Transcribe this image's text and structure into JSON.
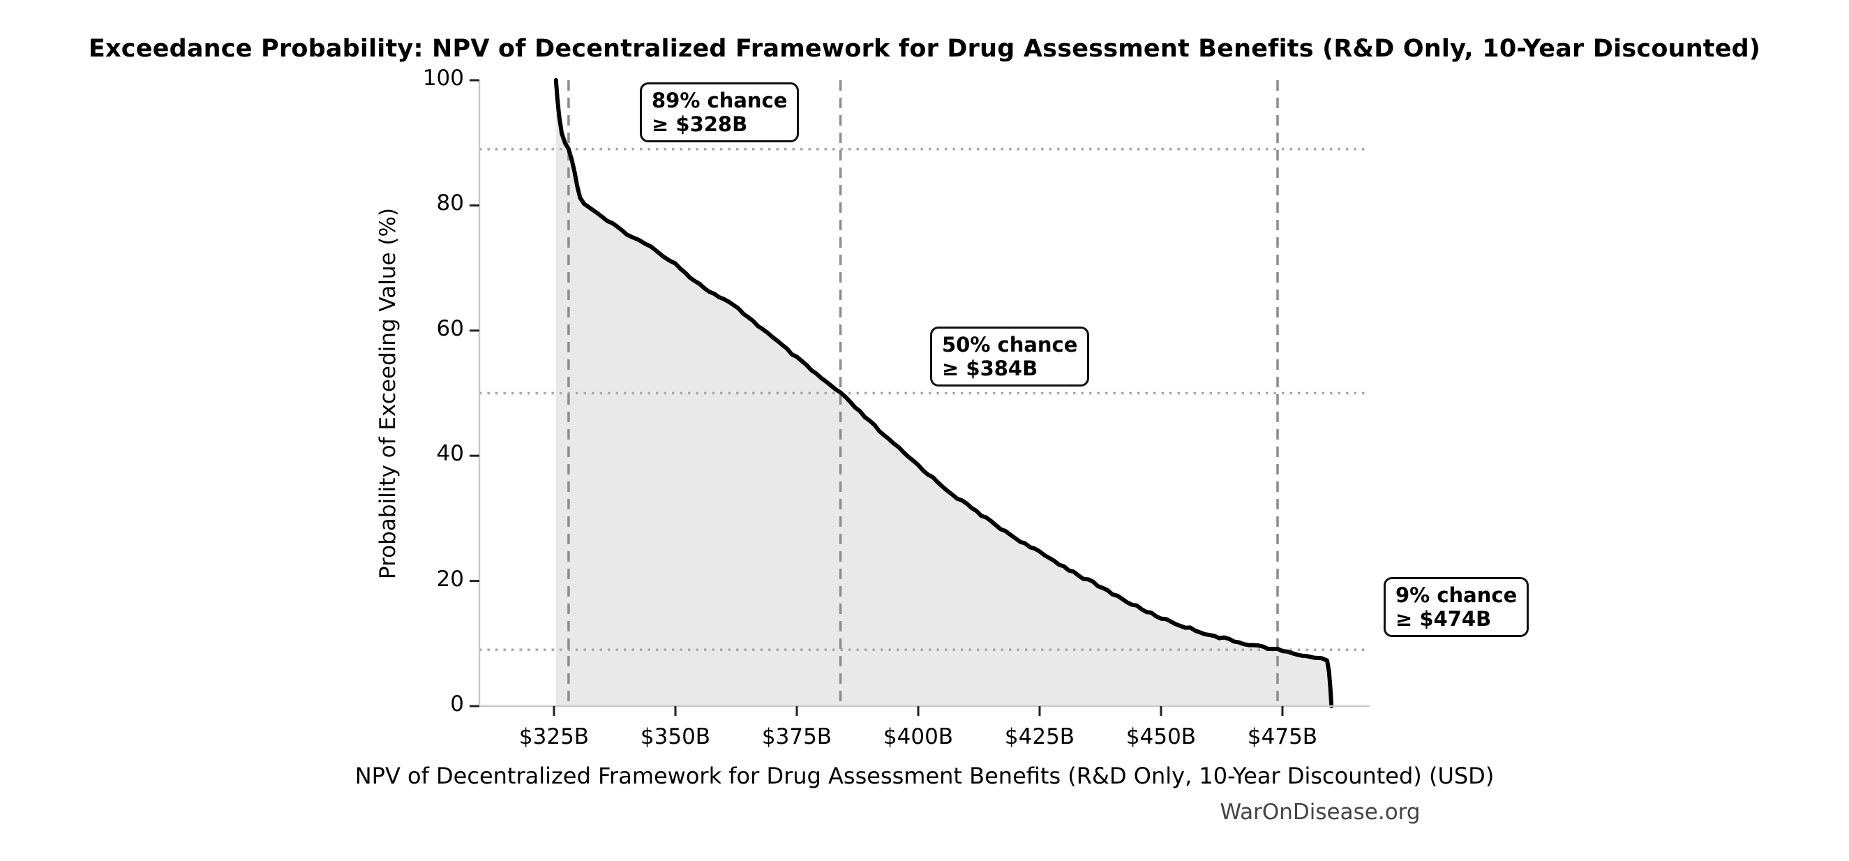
{
  "figure": {
    "title": "Exceedance Probability: NPV of Decentralized Framework for Drug Assessment Benefits (R&D Only, 10-Year Discounted)",
    "watermark": "WarOnDisease.org"
  },
  "chart_data": {
    "type": "line",
    "title": "Exceedance Probability: NPV of Decentralized Framework for Drug Assessment Benefits (R&D Only, 10-Year Discounted)",
    "xlabel": "NPV of Decentralized Framework for Drug Assessment Benefits (R&D Only, 10-Year Discounted) (USD)",
    "ylabel": "Probability of Exceeding Value (%)",
    "ylim": [
      0,
      100
    ],
    "x_tick_values": [
      325,
      350,
      375,
      400,
      425,
      450,
      475
    ],
    "x_tick_labels": [
      "$325B",
      "$350B",
      "$375B",
      "$400B",
      "$425B",
      "$450B",
      "$475B"
    ],
    "y_tick_values": [
      0,
      20,
      40,
      60,
      80,
      100
    ],
    "y_tick_labels": [
      "0",
      "20",
      "40",
      "60",
      "80",
      "100"
    ],
    "grid": "dotted horizontal reference lines at 89%, 50%, 9%; dashed vertical reference lines at $328B, $384B, $474B",
    "legend": "none",
    "reference_lines": {
      "vertical_values_b_usd": [
        328,
        384,
        474
      ],
      "horizontal_percents": [
        89,
        50,
        9
      ]
    },
    "annotations": [
      {
        "line1": "89% chance",
        "line2": "≥ $328B",
        "percent": 89,
        "value_b_usd": 328
      },
      {
        "line1": "50% chance",
        "line2": "≥ $384B",
        "percent": 50,
        "value_b_usd": 384
      },
      {
        "line1": "9% chance",
        "line2": "≥ $474B",
        "percent": 9,
        "value_b_usd": 474
      }
    ],
    "series": [
      {
        "name": "exceedance_curve",
        "points": [
          [
            325.4,
            100
          ],
          [
            325.7,
            97
          ],
          [
            326.1,
            94
          ],
          [
            326.6,
            91.5
          ],
          [
            327.3,
            90
          ],
          [
            328,
            89
          ],
          [
            328.6,
            87.5
          ],
          [
            329.2,
            85.5
          ],
          [
            329.8,
            83
          ],
          [
            330.4,
            81.2
          ],
          [
            331.2,
            80.3
          ],
          [
            332.5,
            79.5
          ],
          [
            334,
            78.6
          ],
          [
            336,
            77.5
          ],
          [
            338,
            76.5
          ],
          [
            340,
            75.5
          ],
          [
            342.5,
            74.4
          ],
          [
            345,
            73.3
          ],
          [
            347.5,
            72.0
          ],
          [
            350,
            70.7
          ],
          [
            352,
            69.3
          ],
          [
            354,
            67.9
          ],
          [
            356,
            66.8
          ],
          [
            358,
            65.8
          ],
          [
            360,
            64.9
          ],
          [
            362,
            64.0
          ],
          [
            364,
            62.8
          ],
          [
            366,
            61.5
          ],
          [
            368,
            60.2
          ],
          [
            370,
            58.9
          ],
          [
            372,
            57.6
          ],
          [
            374,
            56.3
          ],
          [
            376,
            55.0
          ],
          [
            378,
            53.7
          ],
          [
            380,
            52.4
          ],
          [
            382,
            51.2
          ],
          [
            384,
            50.0
          ],
          [
            386,
            48.5
          ],
          [
            388,
            47.0
          ],
          [
            390,
            45.5
          ],
          [
            392,
            44.0
          ],
          [
            394,
            42.5
          ],
          [
            396,
            41.2
          ],
          [
            398,
            39.8
          ],
          [
            400,
            38.5
          ],
          [
            402,
            37.1
          ],
          [
            404,
            35.8
          ],
          [
            406,
            34.5
          ],
          [
            408,
            33.3
          ],
          [
            410,
            32.2
          ],
          [
            412,
            31.1
          ],
          [
            414,
            30.0
          ],
          [
            416,
            28.9
          ],
          [
            418,
            27.9
          ],
          [
            420,
            26.9
          ],
          [
            422,
            25.9
          ],
          [
            424,
            25.0
          ],
          [
            426,
            24.1
          ],
          [
            428,
            23.2
          ],
          [
            430,
            22.3
          ],
          [
            432,
            21.4
          ],
          [
            434,
            20.5
          ],
          [
            436,
            19.7
          ],
          [
            438,
            18.8
          ],
          [
            440,
            18.0
          ],
          [
            442,
            17.1
          ],
          [
            444,
            16.3
          ],
          [
            446,
            15.5
          ],
          [
            448,
            14.8
          ],
          [
            450,
            14.1
          ],
          [
            452,
            13.5
          ],
          [
            454,
            12.9
          ],
          [
            456,
            12.4
          ],
          [
            458,
            11.9
          ],
          [
            460,
            11.4
          ],
          [
            462,
            11.0
          ],
          [
            464,
            10.6
          ],
          [
            466,
            10.2
          ],
          [
            468,
            9.9
          ],
          [
            470,
            9.6
          ],
          [
            472,
            9.3
          ],
          [
            474,
            9.0
          ],
          [
            476,
            8.6
          ],
          [
            478,
            8.3
          ],
          [
            480,
            8.0
          ],
          [
            481.5,
            7.8
          ],
          [
            483,
            7.5
          ],
          [
            484.2,
            7.3
          ],
          [
            484.6,
            5.5
          ],
          [
            484.9,
            2.5
          ],
          [
            485.1,
            0
          ]
        ]
      }
    ],
    "colors": {
      "curve": "#000000",
      "fill": "#e9e9e9",
      "dashed_line": "#8c8c8c",
      "dotted_line": "#a8a8a8",
      "spine": "#c9c9c9",
      "tick": "#222222",
      "watermark": "#444444",
      "annotation_border": "#111111",
      "annotation_bg": "#ffffff"
    }
  }
}
